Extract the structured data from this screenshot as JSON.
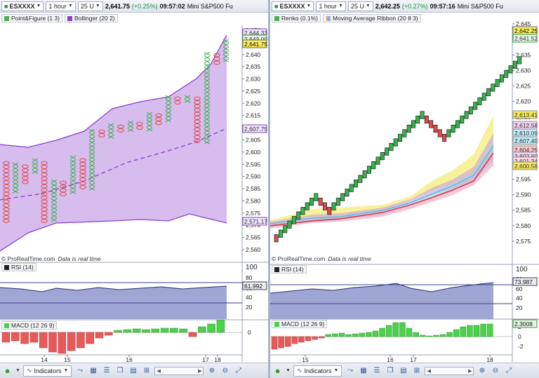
{
  "left": {
    "toolbar": {
      "symbol": "ESXXXX",
      "timeframe": "1 hour",
      "units": "25 U",
      "price": "2,641.75",
      "change": "(+0.25%)",
      "time": "09:57:02",
      "instrument": "Mini S&P500 Fu"
    },
    "legend": [
      {
        "label": "Point&Figure (1 3)",
        "color": "#4caf50"
      },
      {
        "label": "Bollinger (20 2)",
        "color": "#8b3fcf"
      }
    ],
    "watermark": "© ProRealTime.com",
    "watermark_note": "Data is real time",
    "yaxis": [
      "2,650",
      "2,645",
      "2,640",
      "2,635",
      "2,630",
      "2,625",
      "2,620",
      "2,615",
      "2,610",
      "2,605",
      "2,600",
      "2,595",
      "2,590",
      "2,585",
      "2,580",
      "2,575",
      "2,570",
      "2,565",
      "2,560"
    ],
    "markers": {
      "top1": "2,644.33",
      "top2": "2,643.00",
      "last": "2,641.75",
      "mid": "2,607.75",
      "low": "2,571.17"
    },
    "rsi": {
      "label": "RSI (14)",
      "value": "61.992",
      "ticks": [
        "100",
        "80",
        "60",
        "40",
        "20"
      ]
    },
    "macd": {
      "label": "MACD (12 26 9)",
      "tick": "0"
    },
    "dates": [
      "14",
      "15",
      "16",
      "17",
      "18"
    ],
    "bottom": {
      "indicators": "Indicators"
    }
  },
  "right": {
    "toolbar": {
      "symbol": "ESXXXX",
      "timeframe": "1 hour",
      "units": "25 U",
      "price": "2,642.25",
      "change": "(+0.27%)",
      "time": "09:57:16",
      "instrument": "Mini S&P500 Fu"
    },
    "legend": [
      {
        "label": "Renko (0.1%)",
        "color": "#4caf50"
      },
      {
        "label": "Moving Average Ribbon (20 8 3)",
        "color": "#c08ad8"
      }
    ],
    "watermark": "© ProRealTime.com",
    "watermark_note": "Data is real time",
    "yaxis": [
      "2,645",
      "2,640",
      "2,635",
      "2,630",
      "2,625",
      "2,620",
      "2,615",
      "2,610",
      "2,605",
      "2,600",
      "2,595",
      "2,590",
      "2,585",
      "2,580",
      "2,575"
    ],
    "markers": {
      "last": "2,642.25",
      "top2": "2,641.52",
      "m1": "2,613.41",
      "m2": "2,612.58",
      "m3": "2,610.09",
      "m4": "2,607.40",
      "m5": "2,604.25",
      "m6": "2,602.60",
      "m7": "2,601.34",
      "m8": "2,600.58"
    },
    "rsi": {
      "label": "RSI (14)",
      "value": "73.987",
      "ticks": [
        "100",
        "80",
        "60",
        "40",
        "20"
      ]
    },
    "macd": {
      "label": "MACD (12 26 9)",
      "value": "2.3008",
      "ticks": [
        "2",
        "0",
        "-2"
      ]
    },
    "dates": [
      "15",
      "16",
      "17",
      "18"
    ],
    "bottom": {
      "indicators": "Indicators"
    }
  },
  "colors": {
    "up": "#36b24a",
    "down": "#e04848",
    "band": "#c9a5e8",
    "bandLine": "#8b3fcf",
    "rsiFill": "#8f97cc",
    "macdUp": "#4cd14c",
    "macdDown": "#e85a5a"
  }
}
